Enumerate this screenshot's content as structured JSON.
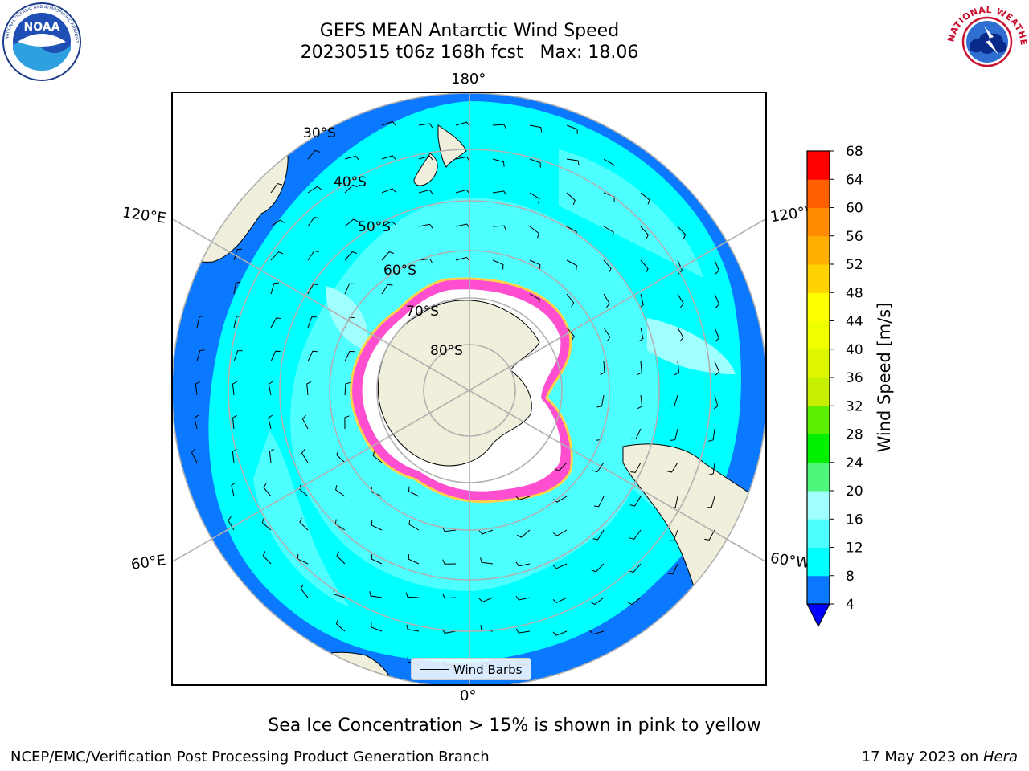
{
  "title": {
    "line1": "GEFS MEAN Antarctic Wind Speed",
    "line2": "20230515 t06z 168h fcst   Max: 18.06"
  },
  "map": {
    "lon_labels": {
      "top": "180°",
      "bottom": "0°",
      "upper_left": "120°E",
      "upper_right": "120°W",
      "lower_left": "60°E",
      "lower_right": "60°W"
    },
    "lat_labels": [
      "30°S",
      "40°S",
      "50°S",
      "60°S",
      "70°S",
      "80°S"
    ],
    "legend_label": "Wind Barbs",
    "colors": {
      "ocean_4_8": "#0a78ff",
      "ocean_8_12": "#00ffff",
      "ocean_12_16": "#4dffff",
      "ocean_16_20": "#a0ffff",
      "land": "#efefdc",
      "ice": "#ff4fd0",
      "ice_edge": "#ffd24a"
    }
  },
  "colorbar": {
    "label": "Wind Speed [m/s]",
    "ticks": [
      "4",
      "8",
      "12",
      "16",
      "20",
      "24",
      "28",
      "32",
      "36",
      "40",
      "44",
      "48",
      "52",
      "56",
      "60",
      "64",
      "68"
    ],
    "colors": [
      "#0a78ff",
      "#00ffff",
      "#4dffff",
      "#a0ffff",
      "#50f57c",
      "#00f000",
      "#5cf000",
      "#c7f000",
      "#ddf500",
      "#f0ff00",
      "#ffff00",
      "#ffd200",
      "#ffaf00",
      "#ff8c00",
      "#ff5f00",
      "#ff2800",
      "#ff0000"
    ],
    "under_color": "#0000ff"
  },
  "caption": "Sea Ice Concentration > 15% is shown in pink to yellow",
  "footer": {
    "left": "NCEP/EMC/Verification Post Processing Product Generation Branch",
    "right_prefix": "17 May 2023 on ",
    "right_host": "Hera"
  },
  "logos": {
    "noaa_text": "NOAA",
    "noaa_ring": "NATIONAL OCEANIC AND ATMOSPHERIC ADMINISTRATION · U.S. DEPARTMENT OF COMMERCE",
    "nws_ring": "NATIONAL WEATHER SERVICE"
  }
}
